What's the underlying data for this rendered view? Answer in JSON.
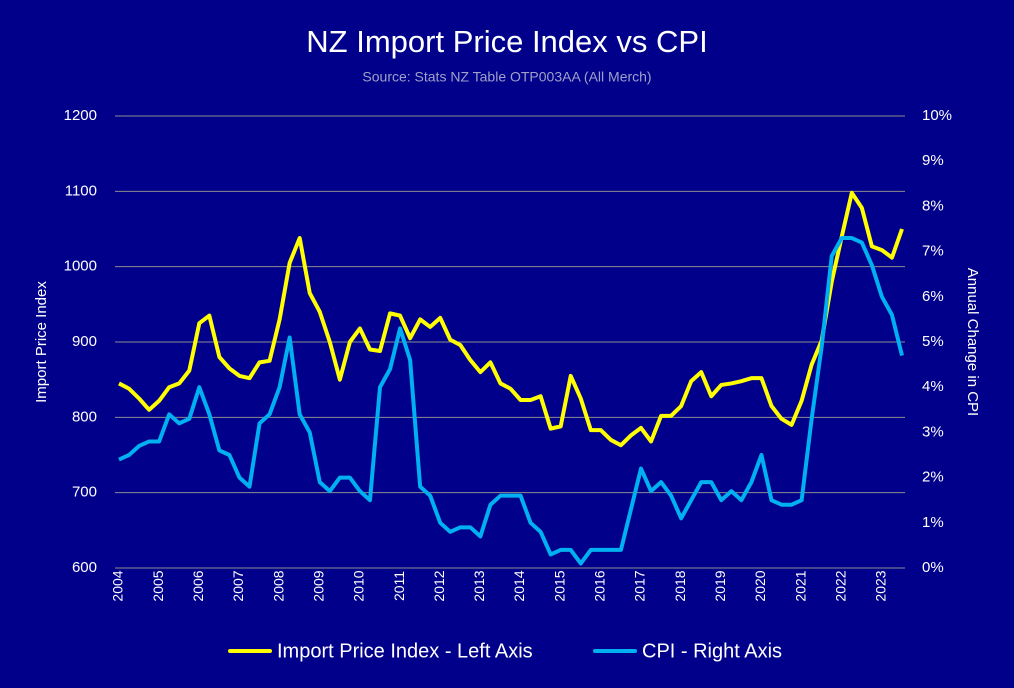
{
  "chart_data": {
    "type": "line",
    "title": "NZ Import Price Index vs CPI",
    "subtitle": "Source: Stats NZ Table OTP003AA (All Merch)",
    "y_label": "Import Price Index",
    "y2_label": "Annual Change in CPI",
    "categories": [
      "2004",
      null,
      null,
      null,
      "2005",
      null,
      null,
      null,
      "2006",
      null,
      null,
      null,
      "2007",
      null,
      null,
      null,
      "2008",
      null,
      null,
      null,
      "2009",
      null,
      null,
      null,
      "2010",
      null,
      null,
      null,
      "2011",
      null,
      null,
      null,
      "2012",
      null,
      null,
      null,
      "2013",
      null,
      null,
      null,
      "2014",
      null,
      null,
      null,
      "2015",
      null,
      null,
      null,
      "2016",
      null,
      null,
      null,
      "2017",
      null,
      null,
      null,
      "2018",
      null,
      null,
      null,
      "2019",
      null,
      null,
      null,
      "2020",
      null,
      null,
      null,
      "2021",
      null,
      null,
      null,
      "2022",
      null,
      null,
      null,
      "2023",
      null,
      null
    ],
    "series": [
      {
        "name": "Import Price Index - Left Axis",
        "color": "#ffff00",
        "axis": "y",
        "values": [
          845,
          838,
          825,
          810,
          822,
          840,
          845,
          862,
          925,
          935,
          880,
          865,
          855,
          852,
          873,
          875,
          930,
          1005,
          1038,
          965,
          940,
          900,
          850,
          900,
          918,
          890,
          888,
          938,
          935,
          905,
          930,
          920,
          932,
          903,
          896,
          876,
          860,
          873,
          845,
          838,
          823,
          823,
          828,
          785,
          788,
          855,
          825,
          783,
          783,
          770,
          763,
          776,
          786,
          768,
          802,
          802,
          815,
          848,
          860,
          828,
          843,
          845,
          848,
          852,
          852,
          815,
          798,
          790,
          822,
          870,
          902,
          980,
          1040,
          1098,
          1078,
          1027,
          1022,
          1012,
          1050
        ]
      },
      {
        "name": "CPI - Right Axis",
        "color": "#00b0f0",
        "axis": "y2",
        "values": [
          2.4,
          2.5,
          2.7,
          2.8,
          2.8,
          3.4,
          3.2,
          3.3,
          4.0,
          3.4,
          2.6,
          2.5,
          2.0,
          1.8,
          3.2,
          3.4,
          4.0,
          5.1,
          3.4,
          3.0,
          1.9,
          1.7,
          2.0,
          2.0,
          1.7,
          1.5,
          4.0,
          4.4,
          5.3,
          4.6,
          1.8,
          1.6,
          1.0,
          0.8,
          0.9,
          0.9,
          0.7,
          1.4,
          1.6,
          1.6,
          1.6,
          1.0,
          0.8,
          0.3,
          0.4,
          0.4,
          0.1,
          0.4,
          0.4,
          0.4,
          0.4,
          1.3,
          2.2,
          1.7,
          1.9,
          1.6,
          1.1,
          1.5,
          1.9,
          1.9,
          1.5,
          1.7,
          1.5,
          1.9,
          2.5,
          1.5,
          1.4,
          1.4,
          1.5,
          3.3,
          4.9,
          6.9,
          7.3,
          7.3,
          7.2,
          6.7,
          6.0,
          5.6,
          4.7
        ]
      }
    ],
    "ylim": [
      600,
      1200
    ],
    "yticks": [
      600,
      700,
      800,
      900,
      1000,
      1100,
      1200
    ],
    "y2lim": [
      0,
      10
    ],
    "y2ticks": [
      {
        "value": 0,
        "label": "0%"
      },
      {
        "value": 1,
        "label": "1%"
      },
      {
        "value": 2,
        "label": "2%"
      },
      {
        "value": 3,
        "label": "3%"
      },
      {
        "value": 4,
        "label": "4%"
      },
      {
        "value": 5,
        "label": "5%"
      },
      {
        "value": 6,
        "label": "6%"
      },
      {
        "value": 7,
        "label": "7%"
      },
      {
        "value": 8,
        "label": "8%"
      },
      {
        "value": 9,
        "label": "9%"
      },
      {
        "value": 10,
        "label": "10%"
      }
    ],
    "grid": true,
    "legend": "bottom",
    "background": "#00008b"
  }
}
